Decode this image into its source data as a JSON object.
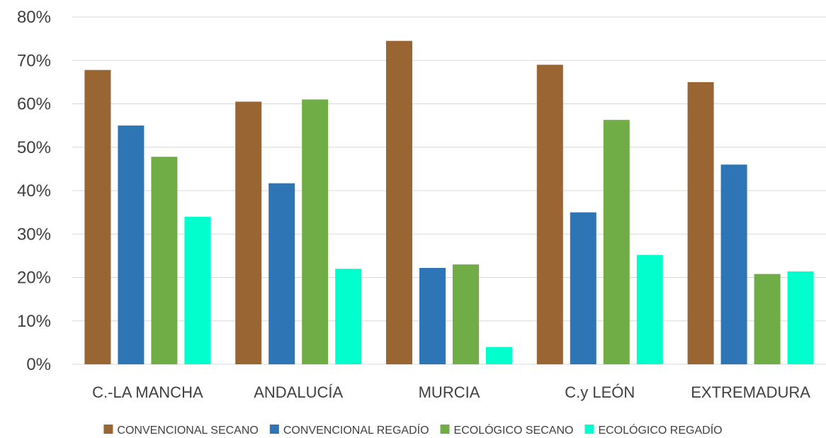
{
  "chart_data": {
    "type": "bar",
    "title": "",
    "xlabel": "",
    "ylabel": "",
    "ylim": [
      0,
      80
    ],
    "yticks": [
      "0%",
      "10%",
      "20%",
      "30%",
      "40%",
      "50%",
      "60%",
      "70%",
      "80%"
    ],
    "grid": true,
    "legend_position": "bottom",
    "categories": [
      "C.-LA MANCHA",
      "ANDALUCÍA",
      "MURCIA",
      "C.y LEÓN",
      "EXTREMADURA"
    ],
    "series": [
      {
        "name": "CONVENCIONAL SECANO",
        "color": "#996633",
        "values": [
          67.8,
          60.5,
          74.5,
          69.0,
          65.0
        ]
      },
      {
        "name": "CONVENCIONAL REGADÍO",
        "color": "#2e75b6",
        "values": [
          55.0,
          41.7,
          22.2,
          35.0,
          46.0
        ]
      },
      {
        "name": "ECOLÓGICO SECANO",
        "color": "#70ad47",
        "values": [
          47.8,
          61.0,
          23.0,
          56.3,
          20.8
        ]
      },
      {
        "name": "ECOLÓGICO REGADÍO",
        "color": "#00ffcc",
        "values": [
          34.0,
          22.0,
          4.0,
          25.2,
          21.4
        ]
      }
    ]
  }
}
